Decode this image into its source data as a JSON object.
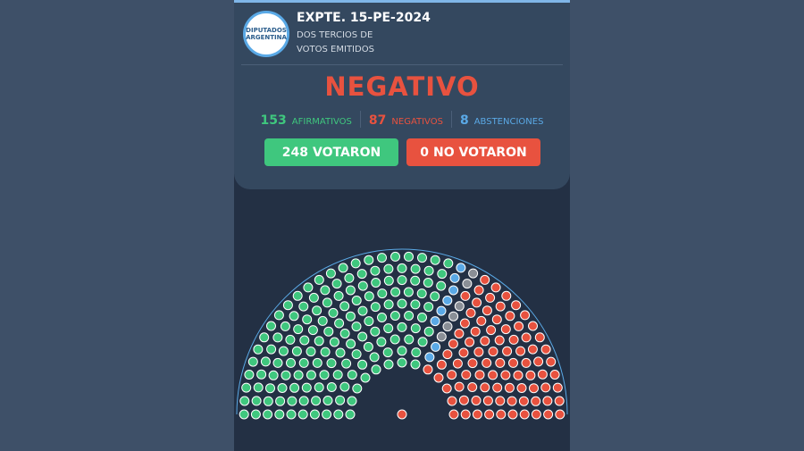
{
  "header": {
    "logo_line1": "DIPUTADOS",
    "logo_line2": "ARGENTINA",
    "title": "EXPTE. 15-PE-2024",
    "subtitle_line1": "DOS TERCIOS DE",
    "subtitle_line2": "VOTOS EMITIDOS"
  },
  "result": "NEGATIVO",
  "tally": [
    {
      "count": 153,
      "label": "AFIRMATIVOS",
      "color": "#3fc77e"
    },
    {
      "count": 87,
      "label": "NEGATIVOS",
      "color": "#e8523f"
    },
    {
      "count": 8,
      "label": "ABSTENCIONES",
      "color": "#5aa9e6"
    }
  ],
  "voted": {
    "count": 248,
    "label": "VOTARON"
  },
  "not_voted": {
    "count": 0,
    "label": "NO VOTARON"
  }
}
